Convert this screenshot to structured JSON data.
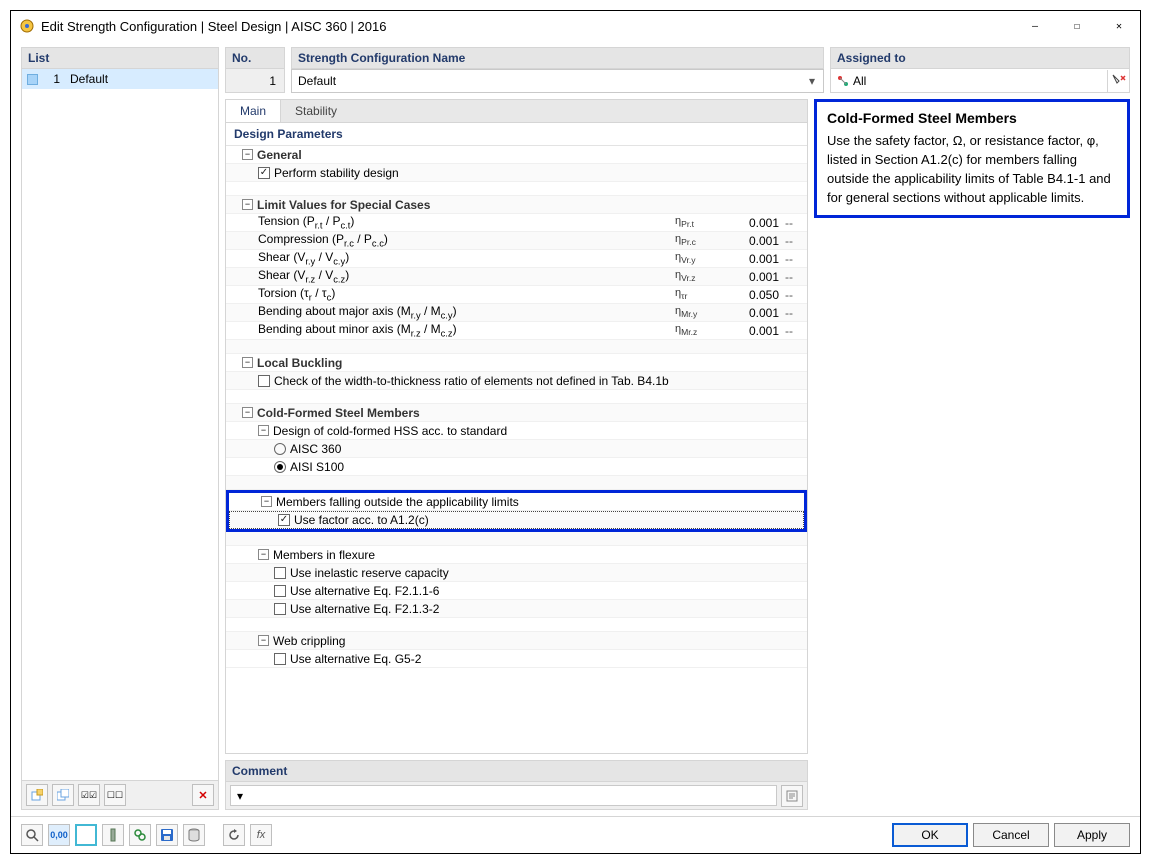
{
  "window": {
    "title": "Edit Strength Configuration | Steel Design | AISC 360 | 2016"
  },
  "left": {
    "header": "List",
    "items": [
      {
        "num": "1",
        "name": "Default"
      }
    ]
  },
  "top": {
    "no_header": "No.",
    "no_value": "1",
    "name_header": "Strength Configuration Name",
    "name_value": "Default",
    "assigned_header": "Assigned to",
    "assigned_value": "All"
  },
  "tabs": {
    "main": "Main",
    "stability": "Stability"
  },
  "panel": {
    "title": "Design Parameters"
  },
  "rows": [
    {
      "type": "exp",
      "depth": 0,
      "label": "General",
      "cls": "grouptitle"
    },
    {
      "type": "chk",
      "depth": 1,
      "checked": true,
      "label": "Perform stability design"
    },
    {
      "type": "spacer"
    },
    {
      "type": "exp",
      "depth": 0,
      "label": "Limit Values for Special Cases",
      "cls": "grouptitle"
    },
    {
      "type": "data",
      "depth": 1,
      "label": "Tension (P<sub>r.t</sub> / P<sub>c.t</sub>)",
      "sym": "η<sub>Pr.t</sub>",
      "val": "0.001",
      "unit": "--"
    },
    {
      "type": "data",
      "depth": 1,
      "label": "Compression (P<sub>r.c</sub> / P<sub>c.c</sub>)",
      "sym": "η<sub>Pr.c</sub>",
      "val": "0.001",
      "unit": "--"
    },
    {
      "type": "data",
      "depth": 1,
      "label": "Shear (V<sub>r.y</sub> / V<sub>c.y</sub>)",
      "sym": "η<sub>Vr.y</sub>",
      "val": "0.001",
      "unit": "--"
    },
    {
      "type": "data",
      "depth": 1,
      "label": "Shear (V<sub>r.z</sub> / V<sub>c.z</sub>)",
      "sym": "η<sub>Vr.z</sub>",
      "val": "0.001",
      "unit": "--"
    },
    {
      "type": "data",
      "depth": 1,
      "label": "Torsion (τ<sub>r</sub> / τ<sub>c</sub>)",
      "sym": "η<sub>τr</sub>",
      "val": "0.050",
      "unit": "--"
    },
    {
      "type": "data",
      "depth": 1,
      "label": "Bending about major axis (M<sub>r.y</sub> / M<sub>c.y</sub>)",
      "sym": "η<sub>Mr.y</sub>",
      "val": "0.001",
      "unit": "--"
    },
    {
      "type": "data",
      "depth": 1,
      "label": "Bending about minor axis (M<sub>r.z</sub> / M<sub>c.z</sub>)",
      "sym": "η<sub>Mr.z</sub>",
      "val": "0.001",
      "unit": "--"
    },
    {
      "type": "spacer"
    },
    {
      "type": "exp",
      "depth": 0,
      "label": "Local Buckling",
      "cls": "grouptitle"
    },
    {
      "type": "chk",
      "depth": 1,
      "checked": false,
      "label": "Check of the width-to-thickness ratio of elements not defined in Tab. B4.1b"
    },
    {
      "type": "spacer"
    },
    {
      "type": "exp",
      "depth": 0,
      "label": "Cold-Formed Steel Members",
      "cls": "grouptitle"
    },
    {
      "type": "exp",
      "depth": 1,
      "label": "Design of cold-formed HSS acc. to standard"
    },
    {
      "type": "radio",
      "depth": 2,
      "selected": false,
      "label": "AISC 360"
    },
    {
      "type": "radio",
      "depth": 2,
      "selected": true,
      "label": "AISI S100"
    },
    {
      "type": "spacer"
    },
    {
      "type": "exp",
      "depth": 1,
      "label": "Members falling outside the applicability limits",
      "highlight": "start"
    },
    {
      "type": "chk",
      "depth": 2,
      "checked": true,
      "label": "Use factor acc. to A1.2(c)",
      "focus": true,
      "highlight": "end"
    },
    {
      "type": "spacer"
    },
    {
      "type": "exp",
      "depth": 1,
      "label": "Members in flexure"
    },
    {
      "type": "chk",
      "depth": 2,
      "checked": false,
      "label": "Use inelastic reserve capacity"
    },
    {
      "type": "chk",
      "depth": 2,
      "checked": false,
      "label": "Use alternative Eq. F2.1.1-6"
    },
    {
      "type": "chk",
      "depth": 2,
      "checked": false,
      "label": "Use alternative Eq. F2.1.3-2"
    },
    {
      "type": "spacer"
    },
    {
      "type": "exp",
      "depth": 1,
      "label": "Web crippling"
    },
    {
      "type": "chk",
      "depth": 2,
      "checked": false,
      "label": "Use alternative Eq. G5-2"
    }
  ],
  "comment": {
    "header": "Comment",
    "value": ""
  },
  "help": {
    "title": "Cold-Formed Steel Members",
    "body": "Use the safety factor, Ω, or resistance factor, φ, listed in Section A1.2(c) for members falling outside the applicability limits of Table B4.1-1 and for general sections without applicable limits."
  },
  "buttons": {
    "ok": "OK",
    "cancel": "Cancel",
    "apply": "Apply"
  }
}
